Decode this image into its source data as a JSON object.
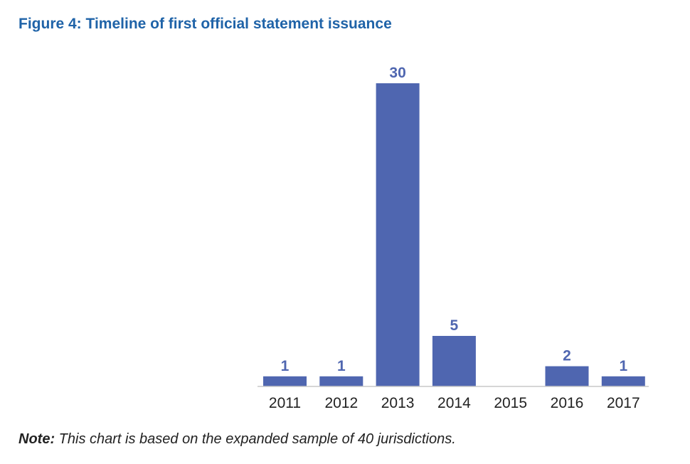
{
  "chart_data": {
    "type": "bar",
    "title": "Figure 4: Timeline of first official statement issuance",
    "categories": [
      "2011",
      "2012",
      "2013",
      "2014",
      "2015",
      "2016",
      "2017"
    ],
    "values": [
      1,
      1,
      30,
      5,
      0,
      2,
      1
    ],
    "data_labels": [
      "1",
      "1",
      "30",
      "5",
      "",
      "2",
      "1"
    ],
    "xlabel": "",
    "ylabel": "",
    "ylim": [
      0,
      30
    ],
    "grid": false,
    "legend": "none",
    "bar_color": "#4f66b0",
    "label_color": "#4f66b0",
    "title_color": "#1f63a8"
  },
  "note": {
    "prefix": "Note:",
    "text": " This chart is based on the expanded sample of 40 jurisdictions."
  }
}
